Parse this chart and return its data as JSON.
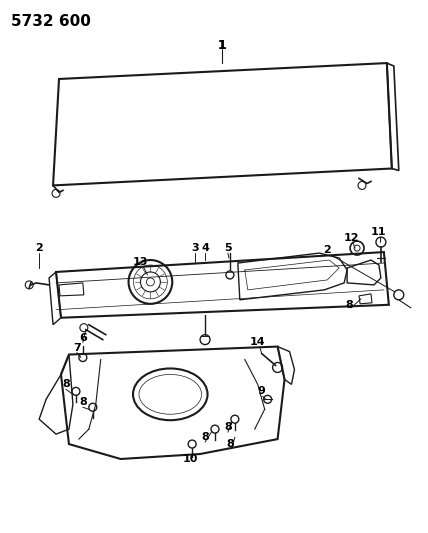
{
  "title": "5732 600",
  "background_color": "#ffffff",
  "line_color": "#1a1a1a",
  "text_color": "#000000",
  "fig_width": 4.28,
  "fig_height": 5.33,
  "dpi": 100
}
